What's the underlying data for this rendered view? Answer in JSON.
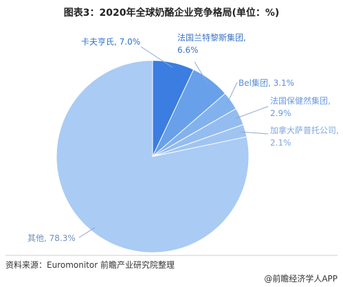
{
  "chart_data": {
    "type": "pie",
    "title": "图表3：2020年全球奶酪企业竞争格局(单位：%)",
    "values": [
      7.0,
      6.6,
      3.1,
      2.9,
      2.1,
      78.3
    ],
    "value_labels": [
      "卡夫亨氏, 7.0%",
      "法国兰特黎斯集团, 6.6%",
      "Bel集团, 3.1%",
      "法国保健然集团, 2.9%",
      "加拿大萨普托公司, 2.1%",
      "其他, 78.3%"
    ],
    "colors": [
      "#3b7de0",
      "#68a1ea",
      "#82b2ee",
      "#93bcf0",
      "#a0c4f2",
      "#a9cbf4"
    ],
    "source": "资料来源：Euromonitor 前瞻产业研究院整理",
    "footer": "@前瞻经济学人APP"
  }
}
